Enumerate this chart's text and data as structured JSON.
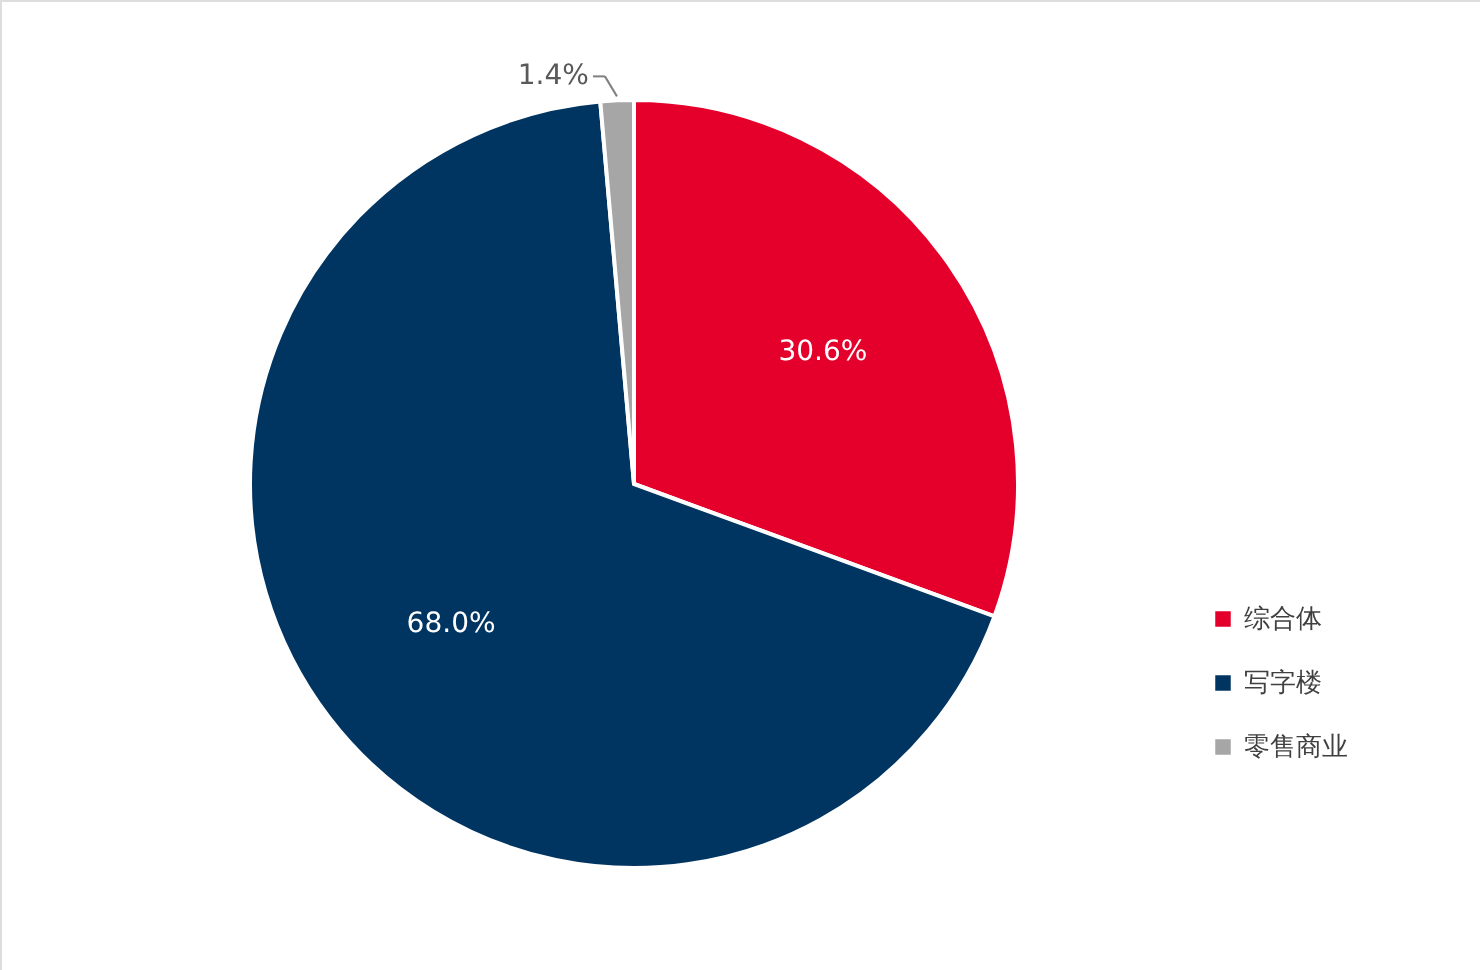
{
  "chart_data": {
    "type": "pie",
    "categories": [
      "综合体",
      "写字楼",
      "零售商业"
    ],
    "values": [
      30.6,
      68.0,
      1.4
    ],
    "colors": [
      "#e4002b",
      "#003561",
      "#a6a6a6"
    ],
    "value_labels": [
      "30.6%",
      "68.0%",
      "1.4%"
    ],
    "legend": "right"
  }
}
